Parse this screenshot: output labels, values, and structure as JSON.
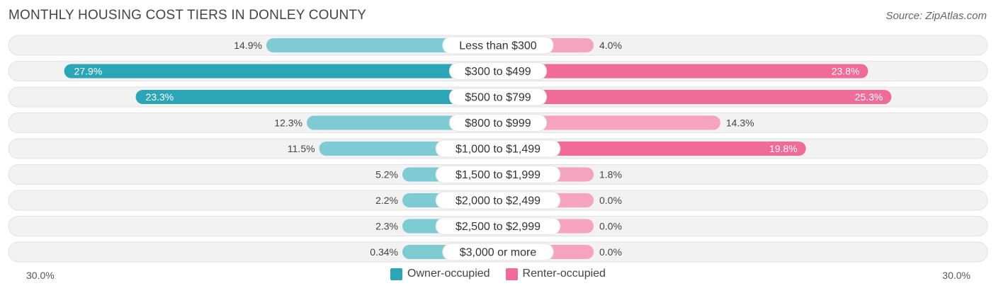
{
  "title": "MONTHLY HOUSING COST TIERS IN DONLEY COUNTY",
  "source": "Source: ZipAtlas.com",
  "colors": {
    "owner": "#2ba6b6",
    "owner_light": "#7fcbd4",
    "renter": "#f06b97",
    "renter_light": "#f6a3bf",
    "track": "#efefef"
  },
  "chart_data": {
    "type": "bar",
    "orientation": "horizontal-diverging",
    "title": "MONTHLY HOUSING COST TIERS IN DONLEY COUNTY",
    "categories": [
      "Less than $300",
      "$300 to $499",
      "$500 to $799",
      "$800 to $999",
      "$1,000 to $1,499",
      "$1,500 to $1,999",
      "$2,000 to $2,499",
      "$2,500 to $2,999",
      "$3,000 or more"
    ],
    "series": [
      {
        "name": "Owner-occupied",
        "values": [
          14.9,
          27.9,
          23.3,
          12.3,
          11.5,
          5.2,
          2.2,
          2.3,
          0.34
        ],
        "labels": [
          "14.9%",
          "27.9%",
          "23.3%",
          "12.3%",
          "11.5%",
          "5.2%",
          "2.2%",
          "2.3%",
          "0.34%"
        ]
      },
      {
        "name": "Renter-occupied",
        "values": [
          4.0,
          23.8,
          25.3,
          14.3,
          19.8,
          1.8,
          0.0,
          0.0,
          0.0
        ],
        "labels": [
          "4.0%",
          "23.8%",
          "25.3%",
          "14.3%",
          "19.8%",
          "1.8%",
          "0.0%",
          "0.0%",
          "0.0%"
        ]
      }
    ],
    "xlim": [
      -30,
      30
    ],
    "axis_left_label": "30.0%",
    "axis_right_label": "30.0%",
    "legend_position": "bottom-center"
  },
  "legend": {
    "owner_label": "Owner-occupied",
    "renter_label": "Renter-occupied"
  }
}
